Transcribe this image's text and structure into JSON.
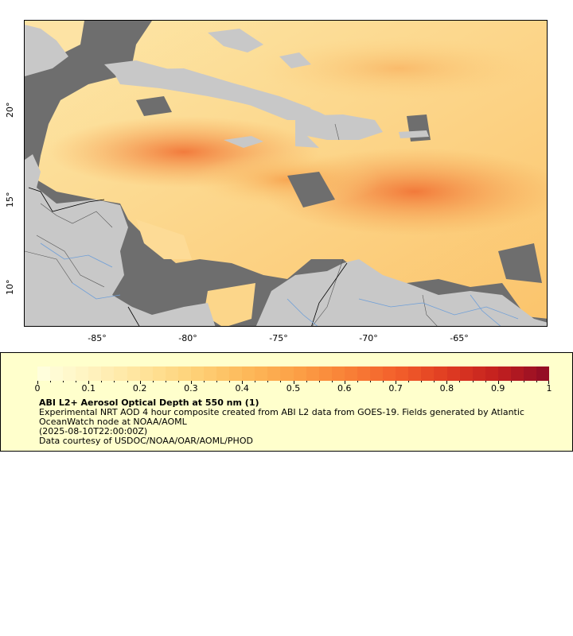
{
  "map": {
    "x_ticks": [
      "-85°",
      "-80°",
      "-75°",
      "-70°",
      "-65°"
    ],
    "y_ticks": [
      "20°",
      "15°",
      "10°"
    ],
    "lon_range": [
      -89,
      -59.6
    ],
    "lat_range": [
      8.2,
      25.2
    ],
    "colors": {
      "ocean_mask": "#6e6e6e",
      "land": "#c8c8c8",
      "rivers": "#6f9fd8",
      "borders": "#555555"
    }
  },
  "legend": {
    "colorbar_labels": [
      "0",
      "0.1",
      "0.2",
      "0.3",
      "0.4",
      "0.5",
      "0.6",
      "0.7",
      "0.8",
      "0.9",
      "1"
    ],
    "colorbar_range": [
      0,
      1
    ],
    "colormap": [
      "#ffffe0",
      "#fff3c0",
      "#ffe49c",
      "#fed37a",
      "#fdbb5c",
      "#fca247",
      "#f98237",
      "#f3602b",
      "#e03c22",
      "#c21f1f",
      "#8e0c25"
    ],
    "title": "ABI L2+ Aerosol Optical Depth at 550 nm (1)",
    "description": "Experimental NRT AOD 4 hour composite created from ABI L2 data from GOES-19. Fields generated by Atlantic OceanWatch node at NOAA/AOML",
    "date": "(2025-08-10T22:00:00Z)",
    "credit": "Data courtesy of USDOC/NOAA/OAR/AOML/PHOD"
  }
}
